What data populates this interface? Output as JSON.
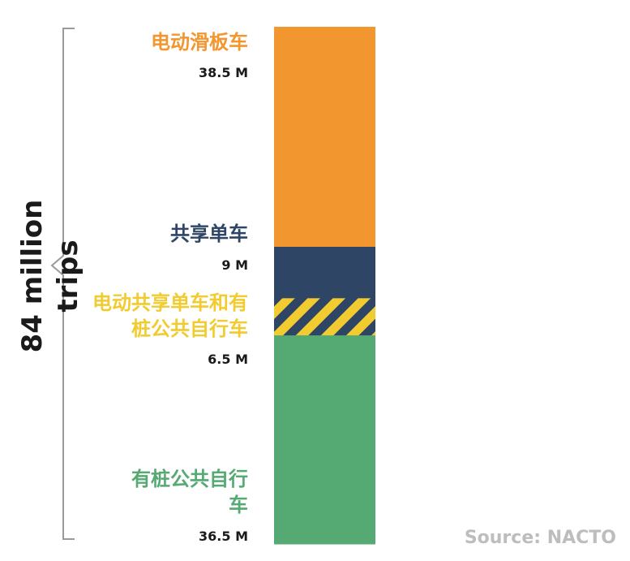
{
  "chart_data": {
    "type": "bar",
    "stacked": true,
    "total_label": "84 million trips",
    "source": "Source: NACTO",
    "categories": [
      {
        "name": "电动滑板车",
        "value": 38.5,
        "value_label": "38.5 M",
        "color": "#f2962f",
        "pattern": "solid"
      },
      {
        "name": "共享单车",
        "value": 9,
        "value_label": "9 M",
        "color": "#2e4565",
        "pattern": "solid"
      },
      {
        "name": "电动共享单车和有桩公共自行车",
        "value": 6.5,
        "value_label": "6.5 M",
        "color": "#f1cb2f",
        "pattern": "stripes-yellow-navy"
      },
      {
        "name": "有桩公共自行车",
        "value": 36.5,
        "value_label": "36.5 M",
        "color": "#55a973",
        "pattern": "solid"
      }
    ],
    "label_colors": [
      "#f2962f",
      "#2e4565",
      "#f1cb2f",
      "#55a973"
    ]
  }
}
